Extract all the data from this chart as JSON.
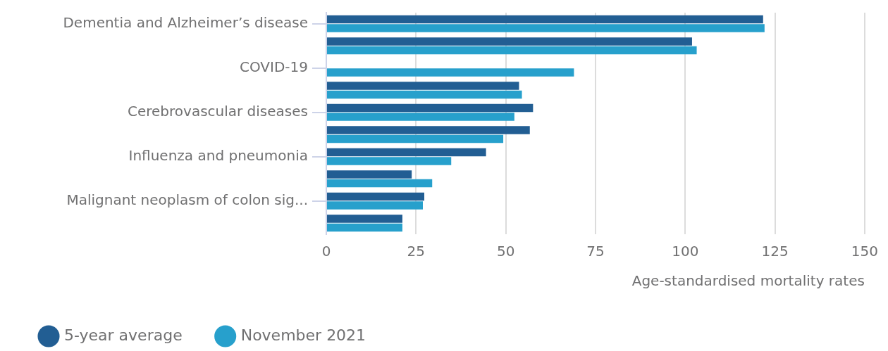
{
  "chart_data": {
    "type": "bar",
    "orientation": "horizontal",
    "xlabel": "Age-standardised mortality rates",
    "categories": [
      "Dementia and Alzheimer’s disease",
      null,
      "COVID-19",
      null,
      "Cerebrovascular diseases",
      null,
      "Influenza and pneumonia",
      null,
      "Malignant neoplasm of colon sig...",
      null
    ],
    "series": [
      {
        "name": "5-year average",
        "color": "#225e93",
        "values": [
          121.7,
          101.9,
          null,
          53.7,
          57.6,
          56.7,
          44.5,
          23.8,
          27.3,
          21.2
        ]
      },
      {
        "name": "November 2021",
        "color": "#27a0cc",
        "values": [
          122.1,
          103.2,
          69.0,
          54.5,
          52.4,
          49.3,
          34.8,
          29.5,
          26.9,
          21.2
        ]
      }
    ],
    "xlim": [
      0,
      150
    ],
    "xticks": [
      0,
      25,
      50,
      75,
      100,
      125,
      150
    ],
    "grid": "x",
    "legend": "bottom left"
  }
}
